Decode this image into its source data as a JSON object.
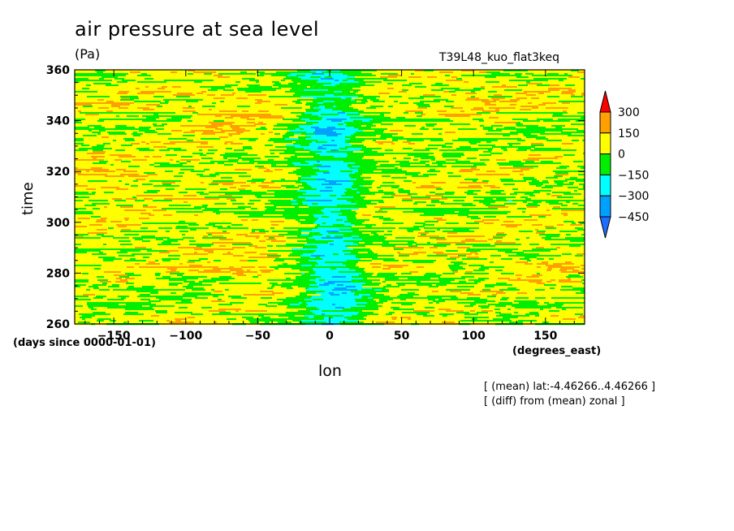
{
  "chart_data": {
    "type": "heatmap",
    "title": "air pressure at sea level",
    "units": "(Pa)",
    "run_name": "T39L48_kuo_flat3keq",
    "xlabel": "lon",
    "ylabel": "time",
    "x_units": "(degrees_east)",
    "time_units": "(days since 0000-01-01)",
    "x_ticks": [
      -150,
      -100,
      -50,
      0,
      50,
      100,
      150
    ],
    "y_ticks": [
      260,
      280,
      300,
      320,
      340,
      360
    ],
    "xlim": [
      -177.1875,
      177.1875
    ],
    "ylim": [
      260,
      360
    ],
    "annotations": [
      "[ (mean) lat:-4.46266..4.46266 ]",
      "[ (diff) from (mean) zonal ]"
    ],
    "colorbar": {
      "levels": [
        -450,
        -300,
        -150,
        0,
        150,
        300
      ],
      "labels": [
        "300",
        "150",
        "0",
        "-150",
        "-300",
        "-450"
      ],
      "colors": [
        "#1e6eff",
        "#00a0ff",
        "#00ffff",
        "#00ee00",
        "#ffff00",
        "#ffa000",
        "#ff0000"
      ],
      "extend": "both"
    },
    "field_pattern": {
      "description_of_values": "zonal anomaly ranges roughly -450..300 Pa; negative (cyan/blue) band near lon -20..20, positive (yellow/orange) elsewhere",
      "anomaly_center_lon": 0,
      "warm_regions": [
        {
          "lon": -70,
          "time": 340,
          "value": 180
        },
        {
          "lon": -60,
          "time": 283,
          "value": 170
        },
        {
          "lon": -140,
          "time": 315,
          "value": 150
        },
        {
          "lon": 150,
          "time": 280,
          "value": 130
        },
        {
          "lon": 100,
          "time": 355,
          "value": 120
        }
      ],
      "cold_regions": [
        {
          "lon": 0,
          "time": 335,
          "value": -330
        },
        {
          "lon": 0,
          "time": 318,
          "value": -320
        },
        {
          "lon": 10,
          "time": 276,
          "value": -380
        },
        {
          "lon": 0,
          "time": 298,
          "value": -260
        }
      ]
    }
  }
}
